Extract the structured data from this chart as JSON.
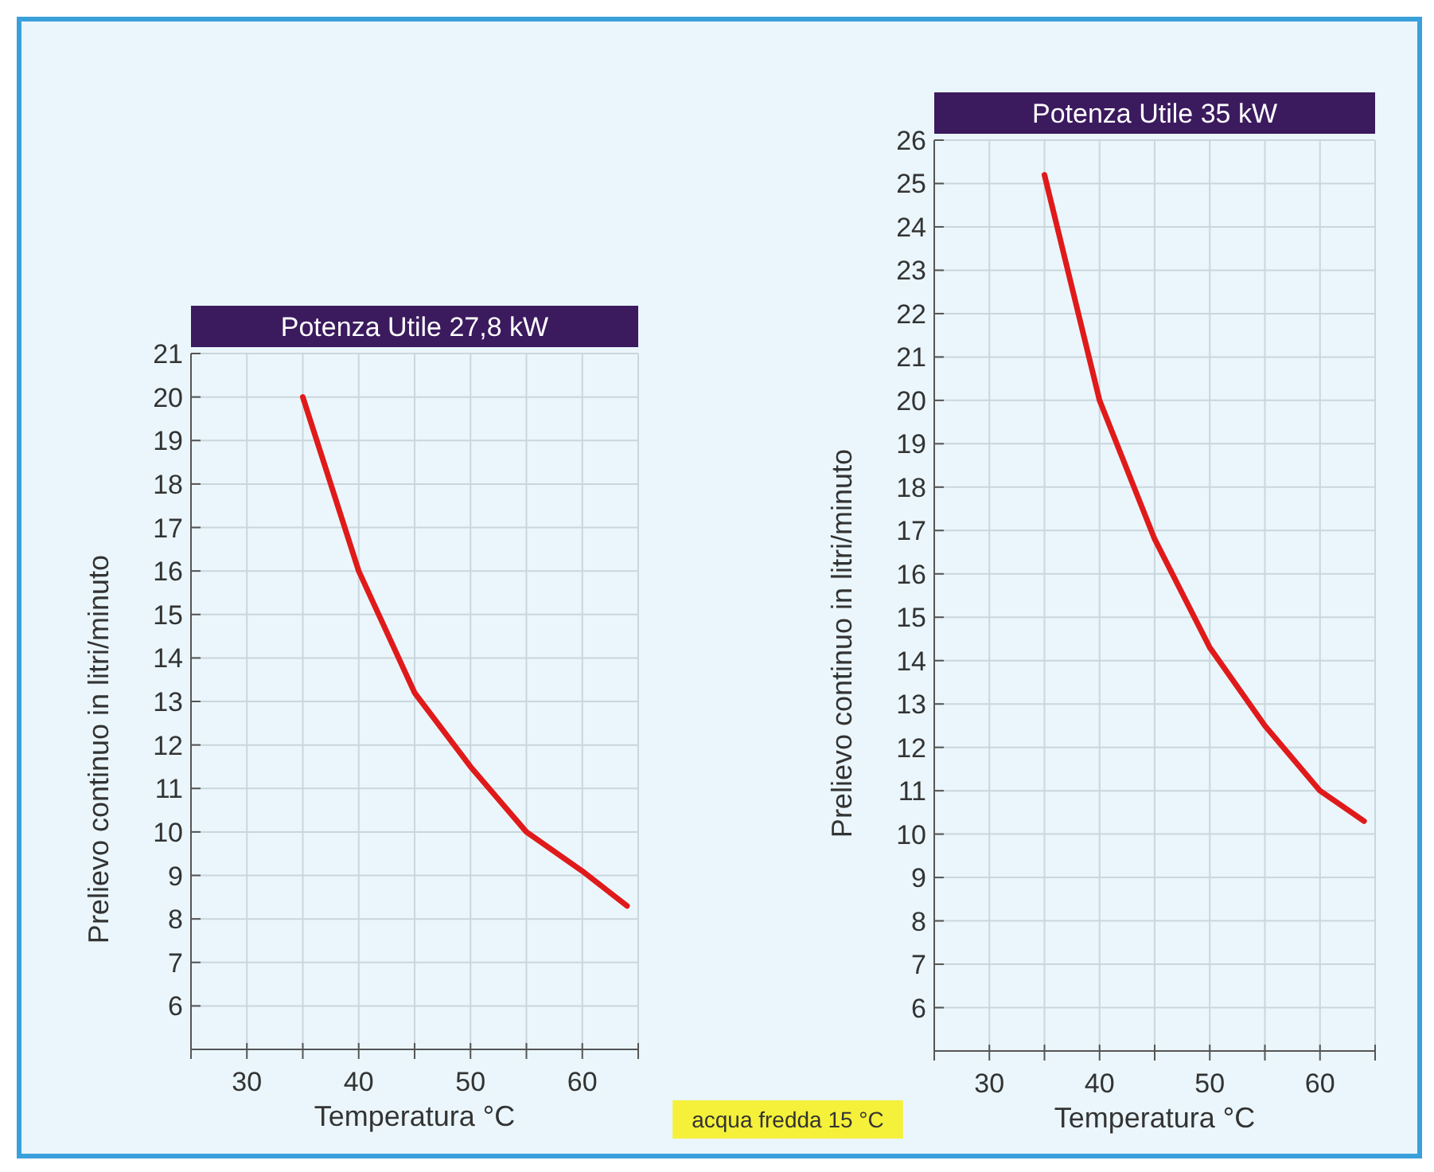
{
  "chart_data": [
    {
      "type": "line",
      "title": "Potenza Utile 27,8 kW",
      "xlabel": "Temperatura °C",
      "ylabel": "Prelievo continuo in litri/minuto",
      "annotations": [
        "acqua fredda 15 °C"
      ],
      "x": [
        35,
        40,
        45,
        50,
        55,
        60,
        64
      ],
      "series": [
        {
          "color": "#e01a1a",
          "values": [
            20,
            16,
            13.2,
            11.5,
            10,
            9.1,
            8.3
          ]
        }
      ],
      "xlim": [
        25,
        65
      ],
      "xticks": [
        {
          "value": 25,
          "label": null
        },
        30,
        {
          "value": 35,
          "label": null
        },
        40,
        {
          "value": 45,
          "label": null
        },
        50,
        {
          "value": 55,
          "label": null
        },
        60,
        {
          "value": 65,
          "label": null
        }
      ],
      "ylim": [
        5,
        21
      ],
      "yticks": [
        6,
        7,
        8,
        9,
        10,
        11,
        12,
        13,
        14,
        15,
        16,
        17,
        18,
        19,
        20,
        21
      ],
      "grid": true,
      "marker": "none",
      "line_style": "solid"
    },
    {
      "type": "line",
      "title": "Potenza Utile 35 kW",
      "xlabel": "Temperatura °C",
      "ylabel": "Prelievo continuo in litri/minuto",
      "x": [
        35,
        40,
        45,
        50,
        55,
        60,
        64
      ],
      "series": [
        {
          "color": "#e01a1a",
          "values": [
            25.2,
            20,
            16.8,
            14.3,
            12.5,
            11,
            10.3
          ]
        }
      ],
      "xlim": [
        25,
        65
      ],
      "xticks": [
        {
          "value": 25,
          "label": null
        },
        30,
        {
          "value": 35,
          "label": null
        },
        40,
        {
          "value": 45,
          "label": null
        },
        50,
        {
          "value": 55,
          "label": null
        },
        60,
        {
          "value": 65,
          "label": null
        }
      ],
      "ylim": [
        5,
        26
      ],
      "yticks": [
        6,
        7,
        8,
        9,
        10,
        11,
        12,
        13,
        14,
        15,
        16,
        17,
        18,
        19,
        20,
        21,
        22,
        23,
        24,
        25,
        26
      ],
      "grid": true,
      "marker": "none",
      "line_style": "solid"
    }
  ]
}
